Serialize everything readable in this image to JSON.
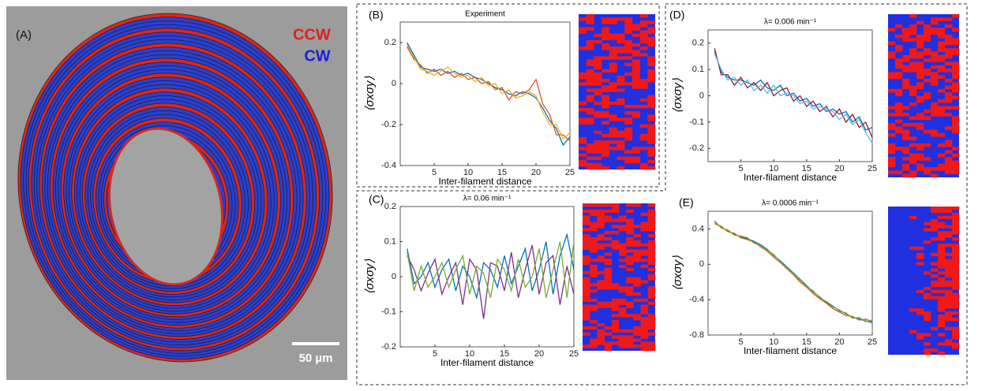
{
  "panel_a": {
    "label": "(A)",
    "legend": [
      "CCW",
      "CW"
    ],
    "scale_bar": "50 µm"
  },
  "chart_data": [
    {
      "type": "line",
      "panel": "(B)",
      "title": "Experiment",
      "xlabel": "Inter-filament distance",
      "ylabel": "⟨σxσy⟩",
      "x": [
        1,
        2,
        3,
        4,
        5,
        6,
        7,
        8,
        9,
        10,
        11,
        12,
        13,
        14,
        15,
        16,
        17,
        18,
        19,
        20,
        21,
        22,
        23,
        24,
        25
      ],
      "xlim": [
        0,
        25
      ],
      "xticks": [
        5,
        10,
        15,
        20,
        25
      ],
      "ylim": [
        -0.4,
        0.3
      ],
      "yticks": [
        -0.4,
        -0.2,
        0,
        0.2
      ],
      "series": [
        {
          "color": "#0072bd",
          "values": [
            0.2,
            0.14,
            0.08,
            0.07,
            0.06,
            0.07,
            0.05,
            0.06,
            0.04,
            0.05,
            0.03,
            0.02,
            0.0,
            -0.02,
            -0.03,
            -0.05,
            -0.06,
            -0.04,
            -0.05,
            -0.07,
            -0.12,
            -0.18,
            -0.22,
            -0.3,
            -0.26
          ]
        },
        {
          "color": "#d95319",
          "values": [
            0.18,
            0.12,
            0.09,
            0.05,
            0.07,
            0.04,
            0.06,
            0.03,
            0.05,
            0.02,
            0.03,
            0.0,
            0.01,
            -0.03,
            -0.02,
            -0.08,
            -0.04,
            -0.05,
            -0.03,
            0.02,
            -0.1,
            -0.15,
            -0.25,
            -0.25,
            -0.28
          ]
        },
        {
          "color": "#edb120",
          "values": [
            0.19,
            0.13,
            0.07,
            0.06,
            0.04,
            0.06,
            0.08,
            0.05,
            0.03,
            0.04,
            0.01,
            0.03,
            -0.01,
            0.0,
            -0.05,
            -0.03,
            -0.07,
            -0.06,
            -0.04,
            -0.06,
            -0.14,
            -0.2,
            -0.2,
            -0.27,
            -0.24
          ]
        }
      ]
    },
    {
      "type": "line",
      "panel": "(C)",
      "title": "λ= 0.06 min⁻¹",
      "xlabel": "Inter-filament distance",
      "ylabel": "⟨σxσy⟩",
      "x": [
        1,
        2,
        3,
        4,
        5,
        6,
        7,
        8,
        9,
        10,
        11,
        12,
        13,
        14,
        15,
        16,
        17,
        18,
        19,
        20,
        21,
        22,
        23,
        24,
        25
      ],
      "xlim": [
        0,
        25
      ],
      "xticks": [
        5,
        10,
        15,
        20,
        25
      ],
      "ylim": [
        -0.2,
        0.2
      ],
      "yticks": [
        -0.2,
        -0.1,
        0,
        0.1,
        0.2
      ],
      "series": [
        {
          "color": "#0072bd",
          "values": [
            0.08,
            -0.02,
            0.0,
            0.04,
            -0.03,
            0.02,
            0.05,
            -0.04,
            0.03,
            0.0,
            -0.06,
            0.04,
            0.02,
            -0.03,
            0.06,
            -0.02,
            0.03,
            0.08,
            -0.04,
            0.02,
            0.1,
            -0.05,
            0.06,
            0.12,
            0.02
          ]
        },
        {
          "color": "#7e2f8e",
          "values": [
            0.06,
            0.02,
            -0.04,
            0.01,
            0.05,
            -0.05,
            0.0,
            0.04,
            -0.08,
            0.05,
            0.02,
            -0.12,
            0.04,
            0.03,
            -0.04,
            0.07,
            -0.06,
            0.02,
            0.09,
            -0.05,
            0.04,
            0.06,
            -0.08,
            0.03,
            -0.05
          ]
        },
        {
          "color": "#77ac30",
          "values": [
            0.07,
            -0.04,
            0.03,
            -0.03,
            0.0,
            0.04,
            -0.03,
            0.02,
            0.06,
            -0.05,
            0.03,
            0.01,
            -0.06,
            0.05,
            0.02,
            -0.04,
            0.05,
            -0.03,
            0.0,
            0.08,
            -0.06,
            0.02,
            0.1,
            -0.06,
            0.1
          ]
        }
      ]
    },
    {
      "type": "line",
      "panel": "(D)",
      "title": "λ= 0.006 min⁻¹",
      "xlabel": "Inter-filament distance",
      "ylabel": "⟨σxσy⟩",
      "x": [
        1,
        2,
        3,
        4,
        5,
        6,
        7,
        8,
        9,
        10,
        11,
        12,
        13,
        14,
        15,
        16,
        17,
        18,
        19,
        20,
        21,
        22,
        23,
        24,
        25
      ],
      "xlim": [
        0,
        25
      ],
      "xticks": [
        5,
        10,
        15,
        20,
        25
      ],
      "ylim": [
        -0.25,
        0.25
      ],
      "yticks": [
        -0.2,
        -0.1,
        0,
        0.1,
        0.2
      ],
      "series": [
        {
          "color": "#0072bd",
          "values": [
            0.17,
            0.09,
            0.07,
            0.06,
            0.06,
            0.05,
            0.04,
            0.06,
            0.03,
            0.02,
            0.04,
            0.0,
            0.01,
            -0.02,
            -0.01,
            -0.04,
            -0.03,
            -0.06,
            -0.05,
            -0.07,
            -0.06,
            -0.1,
            -0.08,
            -0.13,
            -0.12
          ]
        },
        {
          "color": "#a2142f",
          "values": [
            0.18,
            0.08,
            0.08,
            0.04,
            0.07,
            0.03,
            0.05,
            0.02,
            0.05,
            0.0,
            0.02,
            0.03,
            -0.02,
            0.0,
            -0.04,
            -0.02,
            -0.06,
            -0.04,
            -0.08,
            -0.05,
            -0.1,
            -0.07,
            -0.12,
            -0.1,
            -0.16
          ]
        },
        {
          "color": "#4dbeee",
          "values": [
            0.16,
            0.1,
            0.06,
            0.07,
            0.04,
            0.06,
            0.02,
            0.04,
            0.01,
            0.04,
            0.0,
            0.01,
            0.0,
            -0.03,
            -0.02,
            -0.05,
            -0.04,
            -0.05,
            -0.06,
            -0.09,
            -0.07,
            -0.11,
            -0.09,
            -0.14,
            -0.18
          ]
        }
      ]
    },
    {
      "type": "line",
      "panel": "(E)",
      "title": "λ= 0.0006 min⁻¹",
      "xlabel": "Inter-filament distance",
      "ylabel": "⟨σxσy⟩",
      "x": [
        1,
        2,
        3,
        4,
        5,
        6,
        7,
        8,
        9,
        10,
        11,
        12,
        13,
        14,
        15,
        16,
        17,
        18,
        19,
        20,
        21,
        22,
        23,
        24,
        25
      ],
      "xlim": [
        0,
        25
      ],
      "xticks": [
        5,
        10,
        15,
        20,
        25
      ],
      "ylim": [
        -0.8,
        0.6
      ],
      "yticks": [
        -0.8,
        -0.4,
        0,
        0.4
      ],
      "series": [
        {
          "color": "#0072bd",
          "values": [
            0.48,
            0.42,
            0.38,
            0.34,
            0.31,
            0.29,
            0.26,
            0.22,
            0.17,
            0.1,
            0.04,
            -0.03,
            -0.1,
            -0.17,
            -0.24,
            -0.31,
            -0.37,
            -0.43,
            -0.48,
            -0.52,
            -0.56,
            -0.6,
            -0.62,
            -0.64,
            -0.66
          ]
        },
        {
          "color": "#d95319",
          "values": [
            0.46,
            0.43,
            0.37,
            0.35,
            0.3,
            0.28,
            0.25,
            0.2,
            0.15,
            0.08,
            0.02,
            -0.05,
            -0.12,
            -0.2,
            -0.26,
            -0.33,
            -0.39,
            -0.44,
            -0.5,
            -0.54,
            -0.58,
            -0.59,
            -0.63,
            -0.62,
            -0.65
          ]
        },
        {
          "color": "#77ac30",
          "values": [
            0.49,
            0.41,
            0.39,
            0.33,
            0.32,
            0.3,
            0.24,
            0.21,
            0.16,
            0.11,
            0.03,
            -0.04,
            -0.11,
            -0.18,
            -0.25,
            -0.3,
            -0.38,
            -0.42,
            -0.47,
            -0.53,
            -0.55,
            -0.61,
            -0.6,
            -0.65,
            -0.63
          ]
        }
      ]
    }
  ]
}
